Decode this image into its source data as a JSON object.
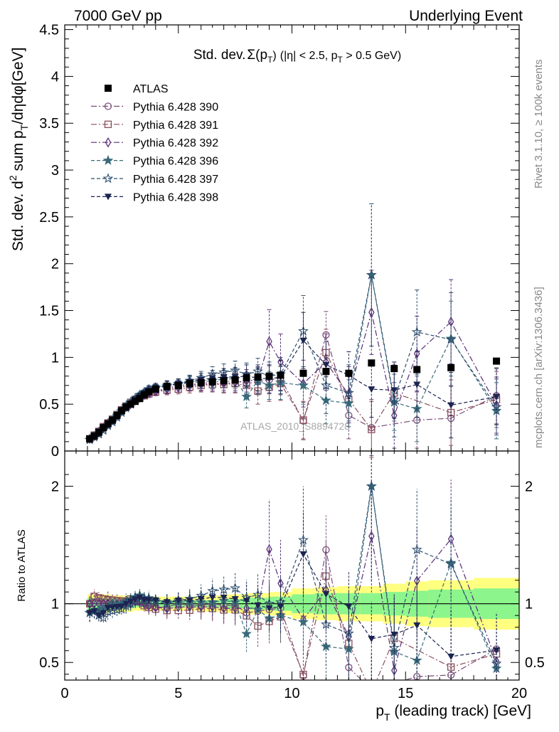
{
  "header": {
    "left": "7000 GeV pp",
    "right": "Underlying Event"
  },
  "side": {
    "rivet": "Rivet 3.1.10, ≥ 100k events",
    "mcplots": "mcplots.cern.ch [arXiv:1306.3436]"
  },
  "chart_data": [
    {
      "type": "line",
      "panel": "main",
      "title_main": "Std. dev.",
      "title_sigma": "Σ(p",
      "title_sigma_sub": "T",
      "title_sigma_close": ")",
      "title_cut1": "(|η| < 2.5, p",
      "title_cut_sub": "T",
      "title_cut2": " > 0.5 GeV)",
      "ylabel_pre": "Std. dev. d",
      "ylabel_sup": "2",
      "ylabel_mid": " sum p",
      "ylabel_sub": "T",
      "ylabel_post": "/dηdφ[GeV]",
      "watermark": "ATLAS_2010_S8894728",
      "xlim": [
        0,
        20
      ],
      "ylim": [
        0,
        4.55
      ],
      "yticks": [
        0,
        0.5,
        1,
        1.5,
        2,
        2.5,
        3,
        3.5,
        4,
        4.5
      ],
      "ytick_labels": [
        "0",
        "0.5",
        "1",
        "1.5",
        "2",
        "2.5",
        "3",
        "3.5",
        "4",
        "4.5"
      ],
      "legend_position": "top-left",
      "data": {
        "name": "ATLAS",
        "x": [
          1.1,
          1.3,
          1.5,
          1.7,
          1.9,
          2.1,
          2.3,
          2.5,
          2.7,
          2.9,
          3.1,
          3.3,
          3.5,
          3.7,
          4.0,
          4.5,
          5.0,
          5.5,
          6.0,
          6.5,
          7.0,
          7.5,
          8.0,
          8.5,
          9.0,
          9.5,
          10.5,
          11.5,
          12.5,
          13.5,
          14.5,
          15.5,
          17.0,
          19.0
        ],
        "y": [
          0.13,
          0.16,
          0.2,
          0.25,
          0.29,
          0.33,
          0.38,
          0.43,
          0.47,
          0.5,
          0.53,
          0.56,
          0.6,
          0.63,
          0.66,
          0.69,
          0.7,
          0.72,
          0.73,
          0.74,
          0.75,
          0.76,
          0.78,
          0.79,
          0.8,
          0.81,
          0.83,
          0.85,
          0.83,
          0.94,
          0.88,
          0.87,
          0.89,
          0.96
        ]
      },
      "series": [
        {
          "name": "Pythia 6.428 390",
          "color": "#7a4d7a",
          "marker": "circle",
          "dash": "8,3,2,3",
          "x": [
            1.1,
            1.3,
            1.5,
            1.7,
            1.9,
            2.1,
            2.3,
            2.5,
            2.7,
            2.9,
            3.1,
            3.3,
            3.5,
            3.7,
            4.0,
            4.5,
            5.0,
            5.5,
            6.0,
            6.5,
            7.0,
            7.5,
            8.0,
            8.5,
            9.0,
            9.5,
            10.5,
            11.5,
            12.5,
            13.5,
            15.5,
            17.0,
            19.0
          ],
          "y": [
            0.13,
            0.17,
            0.21,
            0.25,
            0.3,
            0.34,
            0.39,
            0.44,
            0.48,
            0.51,
            0.54,
            0.57,
            0.6,
            0.62,
            0.64,
            0.67,
            0.7,
            0.71,
            0.72,
            0.74,
            0.74,
            0.75,
            0.72,
            0.74,
            0.76,
            0.78,
            0.32,
            1.24,
            0.38,
            0.25,
            0.33,
            0.35,
            0.59
          ],
          "err": [
            0.01,
            0.01,
            0.01,
            0.01,
            0.02,
            0.02,
            0.02,
            0.02,
            0.03,
            0.03,
            0.03,
            0.03,
            0.03,
            0.04,
            0.04,
            0.05,
            0.05,
            0.06,
            0.07,
            0.08,
            0.09,
            0.1,
            0.12,
            0.14,
            0.15,
            0.18,
            0.2,
            0.25,
            0.25,
            0.3,
            0.3,
            0.35,
            0.3
          ]
        },
        {
          "name": "Pythia 6.428 391",
          "color": "#8a4f5a",
          "marker": "square",
          "dash": "8,3,2,3",
          "x": [
            1.1,
            1.3,
            1.5,
            1.7,
            1.9,
            2.1,
            2.3,
            2.5,
            2.7,
            2.9,
            3.1,
            3.3,
            3.5,
            3.7,
            4.0,
            4.5,
            5.0,
            5.5,
            6.0,
            6.5,
            7.0,
            7.5,
            8.0,
            8.5,
            9.0,
            9.5,
            10.5,
            11.5,
            12.5,
            13.5,
            14.5,
            17.0,
            19.0
          ],
          "y": [
            0.13,
            0.17,
            0.21,
            0.26,
            0.3,
            0.34,
            0.39,
            0.44,
            0.48,
            0.52,
            0.55,
            0.57,
            0.59,
            0.61,
            0.63,
            0.65,
            0.66,
            0.68,
            0.7,
            0.71,
            0.71,
            0.72,
            0.7,
            0.64,
            0.68,
            0.72,
            0.33,
            1.05,
            0.55,
            0.23,
            0.62,
            0.41,
            0.55
          ],
          "err": [
            0.01,
            0.01,
            0.01,
            0.01,
            0.02,
            0.02,
            0.02,
            0.02,
            0.03,
            0.03,
            0.03,
            0.03,
            0.03,
            0.04,
            0.04,
            0.05,
            0.05,
            0.06,
            0.07,
            0.08,
            0.09,
            0.1,
            0.12,
            0.14,
            0.15,
            0.18,
            0.2,
            0.25,
            0.25,
            0.3,
            0.3,
            0.35,
            0.3
          ]
        },
        {
          "name": "Pythia 6.428 392",
          "color": "#5a2f7a",
          "marker": "diamond",
          "dash": "8,3,2,3",
          "x": [
            1.1,
            1.3,
            1.5,
            1.7,
            1.9,
            2.1,
            2.3,
            2.5,
            2.7,
            2.9,
            3.1,
            3.3,
            3.5,
            3.7,
            4.0,
            4.5,
            5.0,
            5.5,
            6.0,
            6.5,
            7.0,
            7.5,
            8.0,
            8.5,
            9.0,
            9.5,
            10.5,
            11.5,
            12.5,
            13.5,
            14.5,
            15.5,
            17.0,
            19.0
          ],
          "y": [
            0.13,
            0.16,
            0.2,
            0.25,
            0.29,
            0.33,
            0.38,
            0.43,
            0.47,
            0.5,
            0.54,
            0.57,
            0.6,
            0.62,
            0.64,
            0.66,
            0.68,
            0.7,
            0.71,
            0.72,
            0.72,
            0.73,
            0.75,
            0.76,
            1.17,
            0.95,
            0.72,
            0.95,
            0.6,
            1.48,
            0.38,
            1.04,
            1.38,
            0.49
          ],
          "err": [
            0.01,
            0.01,
            0.01,
            0.01,
            0.02,
            0.02,
            0.02,
            0.02,
            0.03,
            0.03,
            0.03,
            0.03,
            0.03,
            0.04,
            0.04,
            0.05,
            0.05,
            0.06,
            0.07,
            0.08,
            0.09,
            0.1,
            0.12,
            0.14,
            0.34,
            0.3,
            0.25,
            0.3,
            0.3,
            0.45,
            0.35,
            0.4,
            0.45,
            0.3
          ]
        },
        {
          "name": "Pythia 6.428 396",
          "color": "#3a6a7a",
          "marker": "star",
          "dash": "5,3",
          "x": [
            1.1,
            1.3,
            1.5,
            1.7,
            1.9,
            2.1,
            2.3,
            2.5,
            2.7,
            2.9,
            3.1,
            3.3,
            3.5,
            3.7,
            4.0,
            4.5,
            5.0,
            5.5,
            6.0,
            6.5,
            7.0,
            7.5,
            8.0,
            8.5,
            9.0,
            9.5,
            10.5,
            11.5,
            12.5,
            13.5,
            14.5,
            15.5,
            17.0,
            19.0
          ],
          "y": [
            0.12,
            0.15,
            0.19,
            0.24,
            0.28,
            0.33,
            0.38,
            0.43,
            0.48,
            0.52,
            0.56,
            0.6,
            0.63,
            0.66,
            0.68,
            0.7,
            0.71,
            0.73,
            0.74,
            0.75,
            0.77,
            0.77,
            0.58,
            0.75,
            0.7,
            0.73,
            0.7,
            0.54,
            0.51,
            1.88,
            0.52,
            0.45,
            1.2,
            0.43
          ],
          "err": [
            0.01,
            0.01,
            0.01,
            0.01,
            0.02,
            0.02,
            0.02,
            0.02,
            0.03,
            0.03,
            0.03,
            0.03,
            0.03,
            0.04,
            0.04,
            0.05,
            0.05,
            0.06,
            0.07,
            0.08,
            0.09,
            0.1,
            0.12,
            0.14,
            0.15,
            0.18,
            0.2,
            0.25,
            0.25,
            0.76,
            0.3,
            0.35,
            0.4,
            0.3
          ]
        },
        {
          "name": "Pythia 6.428 397",
          "color": "#2e5070",
          "marker": "staropen",
          "dash": "5,3",
          "x": [
            1.1,
            1.3,
            1.5,
            1.7,
            1.9,
            2.1,
            2.3,
            2.5,
            2.7,
            2.9,
            3.1,
            3.3,
            3.5,
            3.7,
            4.0,
            4.5,
            5.0,
            5.5,
            6.0,
            6.5,
            7.0,
            7.5,
            8.0,
            8.5,
            9.0,
            9.5,
            10.5,
            11.5,
            12.5,
            13.5,
            14.5,
            15.5,
            17.0,
            19.0
          ],
          "y": [
            0.12,
            0.15,
            0.18,
            0.22,
            0.27,
            0.31,
            0.36,
            0.41,
            0.46,
            0.5,
            0.54,
            0.58,
            0.62,
            0.65,
            0.67,
            0.69,
            0.72,
            0.75,
            0.78,
            0.82,
            0.84,
            0.86,
            0.82,
            0.85,
            0.8,
            0.82,
            1.28,
            0.7,
            0.62,
            1.88,
            0.55,
            1.27,
            1.19,
            0.47
          ],
          "err": [
            0.01,
            0.01,
            0.01,
            0.01,
            0.02,
            0.02,
            0.02,
            0.02,
            0.03,
            0.03,
            0.03,
            0.03,
            0.03,
            0.04,
            0.04,
            0.05,
            0.05,
            0.06,
            0.07,
            0.08,
            0.09,
            0.1,
            0.12,
            0.14,
            0.15,
            0.18,
            0.38,
            0.3,
            0.3,
            0.76,
            0.4,
            0.45,
            0.5,
            0.3
          ]
        },
        {
          "name": "Pythia 6.428 398",
          "color": "#1c2450",
          "marker": "trianglefill",
          "dash": "5,3",
          "x": [
            1.1,
            1.3,
            1.5,
            1.7,
            1.9,
            2.1,
            2.3,
            2.5,
            2.7,
            2.9,
            3.1,
            3.3,
            3.5,
            3.7,
            4.0,
            4.5,
            5.0,
            5.5,
            6.0,
            6.5,
            7.0,
            7.5,
            8.0,
            8.5,
            9.0,
            9.5,
            10.5,
            11.5,
            12.5,
            13.5,
            14.5,
            15.5,
            17.0,
            19.0
          ],
          "y": [
            0.12,
            0.15,
            0.18,
            0.23,
            0.28,
            0.32,
            0.37,
            0.42,
            0.47,
            0.51,
            0.55,
            0.59,
            0.62,
            0.65,
            0.68,
            0.7,
            0.72,
            0.74,
            0.76,
            0.78,
            0.79,
            0.79,
            0.8,
            0.78,
            0.77,
            0.79,
            1.18,
            0.92,
            0.81,
            0.66,
            0.65,
            0.71,
            0.49,
            0.58
          ],
          "err": [
            0.01,
            0.01,
            0.01,
            0.01,
            0.02,
            0.02,
            0.02,
            0.02,
            0.03,
            0.03,
            0.03,
            0.03,
            0.03,
            0.04,
            0.04,
            0.05,
            0.05,
            0.06,
            0.07,
            0.08,
            0.09,
            0.1,
            0.12,
            0.14,
            0.15,
            0.18,
            0.3,
            0.25,
            0.25,
            0.3,
            0.3,
            0.35,
            0.35,
            0.3
          ]
        }
      ]
    },
    {
      "type": "line",
      "panel": "ratio",
      "ylabel": "Ratio to ATLAS",
      "xlabel_pre": "p",
      "xlabel_sub": "T",
      "xlabel_post": " (leading track) [GeV]",
      "xlim": [
        0,
        20
      ],
      "ylim": [
        0.35,
        2.3
      ],
      "xticks": [
        0,
        5,
        10,
        15,
        20
      ],
      "xtick_labels": [
        "0",
        "5",
        "10",
        "15",
        "20"
      ],
      "yticks": [
        0.5,
        1,
        2
      ],
      "ytick_labels": [
        "0.5",
        "1",
        "2"
      ],
      "bands": {
        "edges": [
          1.0,
          2.0,
          3.0,
          4.0,
          5.0,
          6.0,
          7.0,
          8.0,
          9.0,
          10.0,
          11.0,
          12.0,
          13.0,
          14.0,
          15.0,
          16.0,
          18.0,
          20.0
        ],
        "stat": [
          0.05,
          0.04,
          0.03,
          0.03,
          0.03,
          0.03,
          0.04,
          0.05,
          0.06,
          0.08,
          0.09,
          0.09,
          0.09,
          0.1,
          0.11,
          0.12,
          0.13
        ],
        "total": [
          0.08,
          0.07,
          0.06,
          0.06,
          0.06,
          0.07,
          0.08,
          0.09,
          0.1,
          0.13,
          0.14,
          0.15,
          0.15,
          0.17,
          0.19,
          0.2,
          0.22
        ]
      }
    }
  ]
}
